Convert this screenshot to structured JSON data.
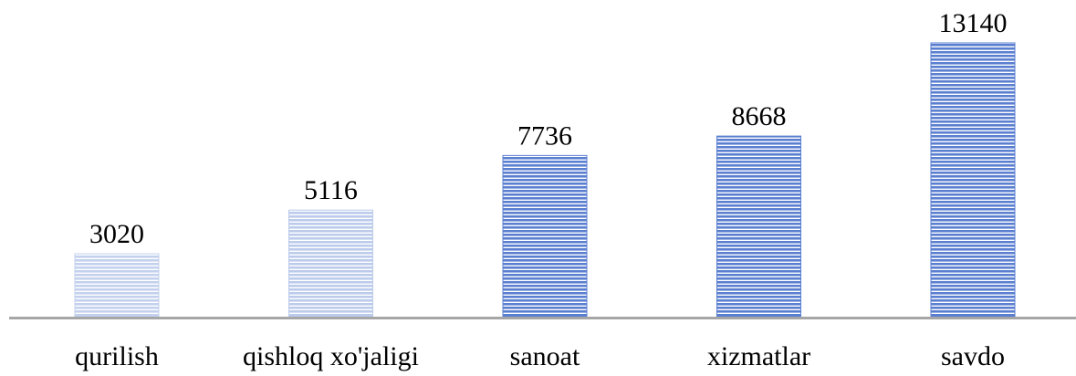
{
  "chart_data": {
    "type": "bar",
    "categories": [
      "qurilish",
      "qishloq xo'jaligi",
      "sanoat",
      "xizmatlar",
      "savdo"
    ],
    "values": [
      3020,
      5116,
      7736,
      8668,
      13140
    ],
    "colors": [
      "#c3d1ee",
      "#bccbeb",
      "#5b7fd0",
      "#5b7fd0",
      "#5b7fd0"
    ]
  }
}
